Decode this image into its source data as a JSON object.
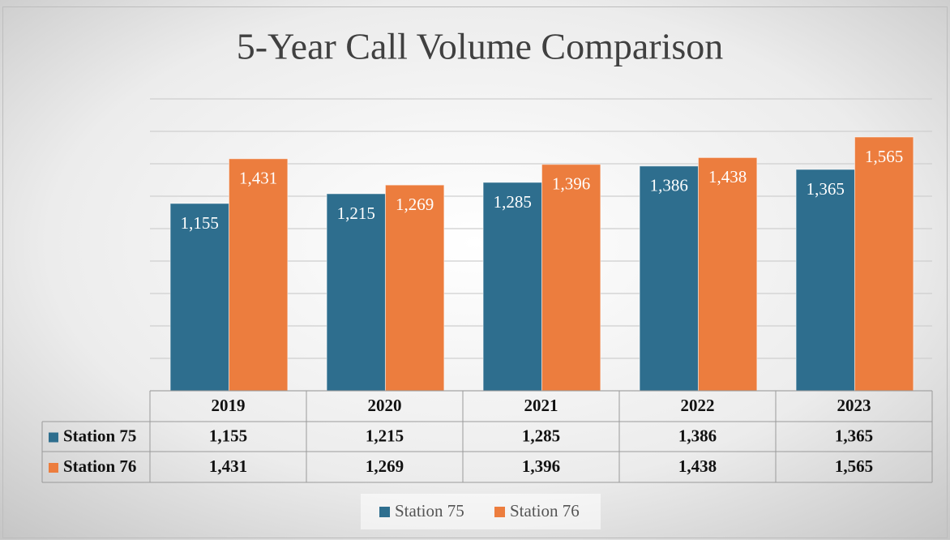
{
  "chart_data": {
    "type": "bar",
    "title": "5-Year Call Volume Comparison",
    "categories": [
      "2019",
      "2020",
      "2021",
      "2022",
      "2023"
    ],
    "series": [
      {
        "name": "Station 75",
        "color": "#2e6e8e",
        "values": [
          1155,
          1215,
          1285,
          1386,
          1365
        ],
        "value_labels": [
          "1,155",
          "1,215",
          "1,285",
          "1,386",
          "1,365"
        ]
      },
      {
        "name": "Station 76",
        "color": "#ec7d3e",
        "values": [
          1431,
          1269,
          1396,
          1438,
          1565
        ],
        "value_labels": [
          "1,431",
          "1,269",
          "1,396",
          "1,438",
          "1,565"
        ]
      }
    ],
    "ylim": [
      0,
      1800
    ],
    "yticks": [
      0,
      200,
      400,
      600,
      800,
      1000,
      1200,
      1400,
      1600,
      1800
    ],
    "grid": true,
    "legend": "bottom",
    "data_table": true
  }
}
